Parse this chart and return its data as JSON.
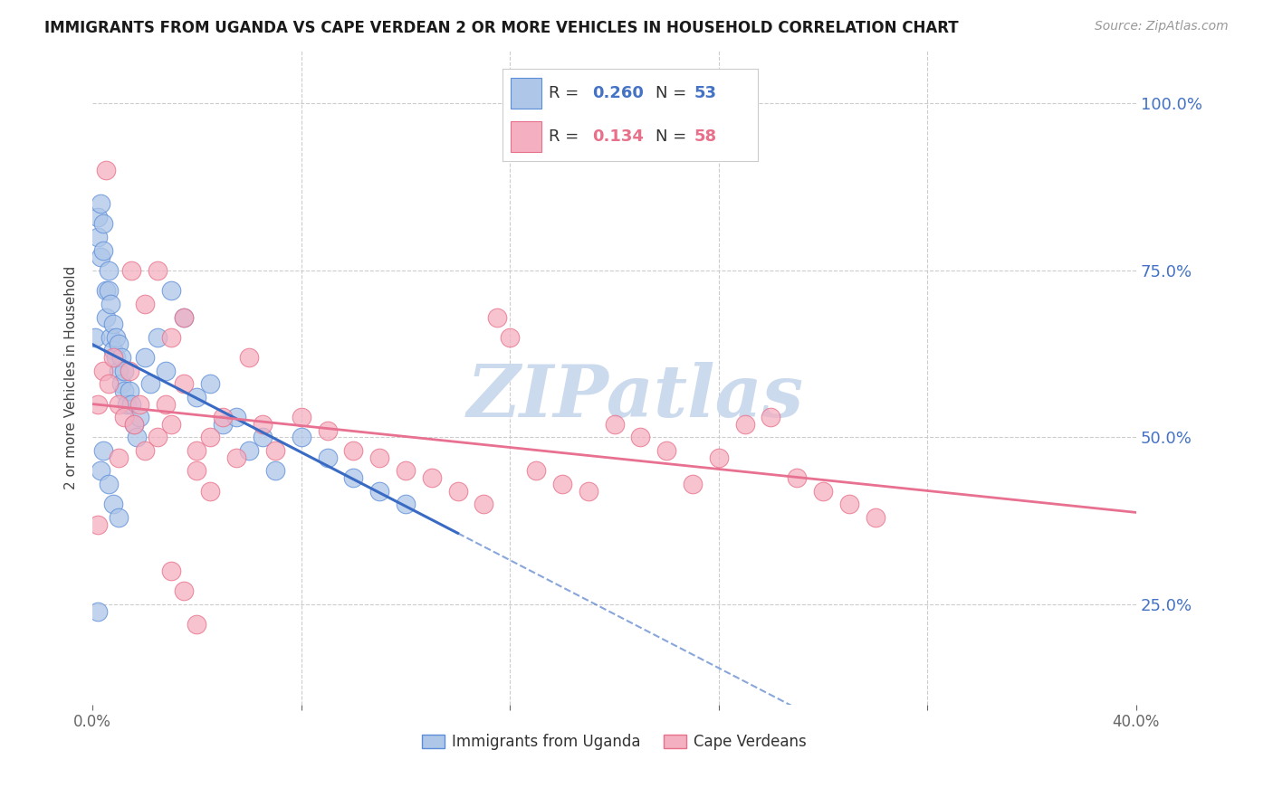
{
  "title": "IMMIGRANTS FROM UGANDA VS CAPE VERDEAN 2 OR MORE VEHICLES IN HOUSEHOLD CORRELATION CHART",
  "source": "Source: ZipAtlas.com",
  "ylabel": "2 or more Vehicles in Household",
  "ytick_labels": [
    "25.0%",
    "50.0%",
    "75.0%",
    "100.0%"
  ],
  "ytick_vals": [
    0.25,
    0.5,
    0.75,
    1.0
  ],
  "xlim": [
    0.0,
    0.4
  ],
  "ylim": [
    0.1,
    1.08
  ],
  "uganda_R": 0.26,
  "uganda_N": 53,
  "capeverdean_R": 0.134,
  "capeverdean_N": 58,
  "uganda_color": "#aec6e8",
  "capeverdean_color": "#f4afc0",
  "uganda_edge_color": "#5b8dd9",
  "capeverdean_edge_color": "#e8708a",
  "uganda_line_color": "#3a6bc4",
  "capeverdean_line_color": "#e87090",
  "watermark": "ZIPatlas",
  "watermark_color": "#ccdaee",
  "legend_border_color": "#cccccc",
  "grid_color": "#cccccc",
  "axis_label_color": "#4472C4",
  "tick_color": "#666666",
  "uganda_x": [
    0.001,
    0.002,
    0.002,
    0.003,
    0.003,
    0.004,
    0.004,
    0.005,
    0.005,
    0.006,
    0.006,
    0.007,
    0.007,
    0.008,
    0.008,
    0.009,
    0.009,
    0.01,
    0.01,
    0.011,
    0.011,
    0.012,
    0.012,
    0.013,
    0.014,
    0.015,
    0.016,
    0.017,
    0.018,
    0.02,
    0.022,
    0.025,
    0.028,
    0.03,
    0.035,
    0.04,
    0.045,
    0.05,
    0.055,
    0.06,
    0.065,
    0.07,
    0.08,
    0.09,
    0.1,
    0.11,
    0.12,
    0.003,
    0.004,
    0.006,
    0.008,
    0.01,
    0.002
  ],
  "uganda_y": [
    0.65,
    0.8,
    0.83,
    0.77,
    0.85,
    0.78,
    0.82,
    0.72,
    0.68,
    0.72,
    0.75,
    0.65,
    0.7,
    0.63,
    0.67,
    0.62,
    0.65,
    0.6,
    0.64,
    0.58,
    0.62,
    0.57,
    0.6,
    0.55,
    0.57,
    0.55,
    0.52,
    0.5,
    0.53,
    0.62,
    0.58,
    0.65,
    0.6,
    0.72,
    0.68,
    0.56,
    0.58,
    0.52,
    0.53,
    0.48,
    0.5,
    0.45,
    0.5,
    0.47,
    0.44,
    0.42,
    0.4,
    0.45,
    0.48,
    0.43,
    0.4,
    0.38,
    0.24
  ],
  "capeverdean_x": [
    0.002,
    0.004,
    0.006,
    0.008,
    0.01,
    0.012,
    0.014,
    0.016,
    0.018,
    0.02,
    0.025,
    0.028,
    0.03,
    0.035,
    0.04,
    0.045,
    0.05,
    0.055,
    0.06,
    0.065,
    0.07,
    0.08,
    0.09,
    0.1,
    0.11,
    0.12,
    0.13,
    0.14,
    0.15,
    0.16,
    0.17,
    0.18,
    0.19,
    0.2,
    0.21,
    0.22,
    0.23,
    0.24,
    0.25,
    0.26,
    0.27,
    0.28,
    0.29,
    0.3,
    0.002,
    0.005,
    0.01,
    0.015,
    0.02,
    0.025,
    0.03,
    0.035,
    0.04,
    0.045,
    0.155,
    0.03,
    0.035,
    0.04
  ],
  "capeverdean_y": [
    0.55,
    0.6,
    0.58,
    0.62,
    0.55,
    0.53,
    0.6,
    0.52,
    0.55,
    0.48,
    0.5,
    0.55,
    0.52,
    0.58,
    0.48,
    0.5,
    0.53,
    0.47,
    0.62,
    0.52,
    0.48,
    0.53,
    0.51,
    0.48,
    0.47,
    0.45,
    0.44,
    0.42,
    0.4,
    0.65,
    0.45,
    0.43,
    0.42,
    0.52,
    0.5,
    0.48,
    0.43,
    0.47,
    0.52,
    0.53,
    0.44,
    0.42,
    0.4,
    0.38,
    0.37,
    0.9,
    0.47,
    0.75,
    0.7,
    0.75,
    0.65,
    0.68,
    0.45,
    0.42,
    0.68,
    0.3,
    0.27,
    0.22
  ]
}
